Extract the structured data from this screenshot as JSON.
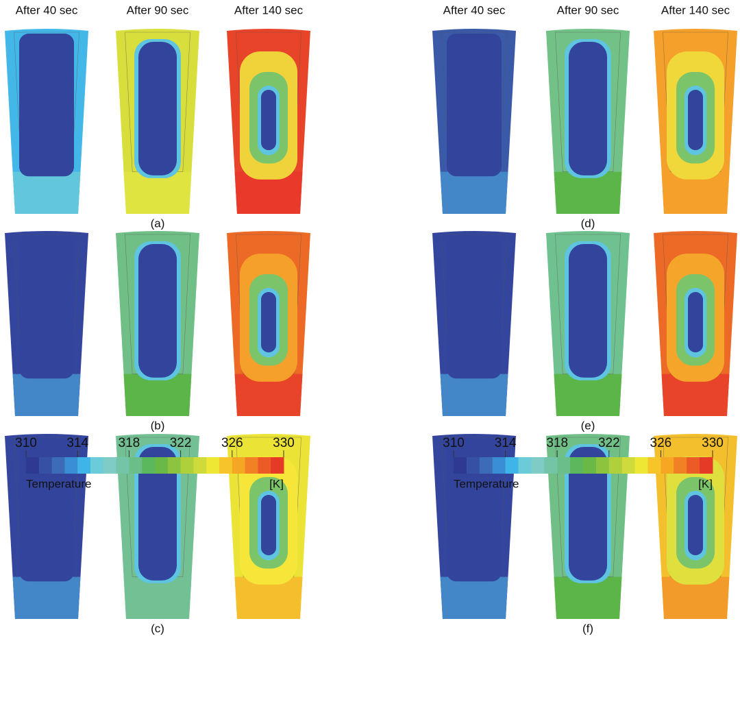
{
  "columns_left": [
    "After 40 sec",
    "After 90 sec",
    "After 140 sec"
  ],
  "columns_right": [
    "After 40 sec",
    "After 90 sec",
    "After 140 sec"
  ],
  "panel_labels": [
    "(a)",
    "(b)",
    "(c)",
    "(d)",
    "(e)",
    "(f)"
  ],
  "colorbars": [
    {
      "lim": [
        310,
        330
      ],
      "ticks": [
        310,
        314,
        318,
        322,
        326,
        330
      ],
      "label": "Temperature",
      "unit": "[K]",
      "colors": [
        "#2e3a92",
        "#3650a4",
        "#3c6bb7",
        "#3a8fd4",
        "#3fb4e8",
        "#6ccbd9",
        "#7fcbc6",
        "#74c4a8",
        "#6bbe8a",
        "#5cb85c",
        "#6ab846",
        "#8cc43f",
        "#aed03a",
        "#cfdb3a",
        "#eee734",
        "#f7c52a",
        "#f5a623",
        "#f28024",
        "#ec5b25",
        "#e53b26"
      ]
    },
    {
      "lim": [
        310,
        330
      ],
      "ticks": [
        310,
        314,
        318,
        322,
        326,
        330
      ],
      "label": "Temperature",
      "unit": "[K]",
      "colors": [
        "#2e3a92",
        "#3650a4",
        "#3c6bb7",
        "#3a8fd4",
        "#3fb4e8",
        "#6ccbd9",
        "#7fcbc6",
        "#74c4a8",
        "#6bbe8a",
        "#5cb85c",
        "#6ab846",
        "#8cc43f",
        "#aed03a",
        "#cfdb3a",
        "#eee734",
        "#f7c52a",
        "#f5a623",
        "#f28024",
        "#ec5b25",
        "#e53b26"
      ]
    }
  ]
}
